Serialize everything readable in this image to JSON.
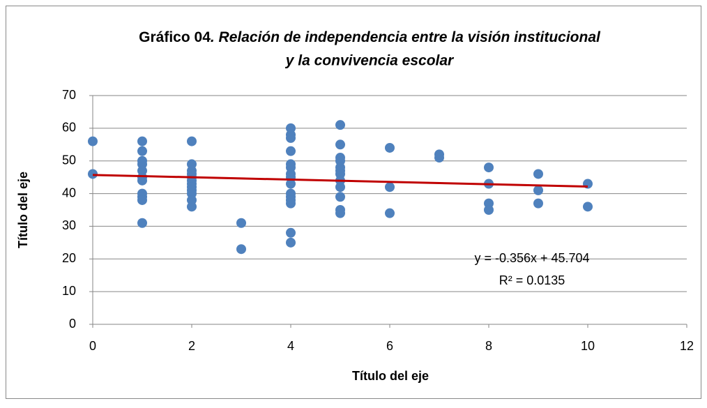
{
  "chart_data": {
    "type": "scatter",
    "title_parts": [
      "Gráfico 04",
      ". Relación de independencia entre la visión institucional",
      "y la convivencia escolar"
    ],
    "x_label": "Título del eje",
    "y_label": "Título del eje",
    "series": [
      {
        "color": "#4f81bd",
        "x": [
          0,
          0,
          1,
          1,
          1,
          1,
          1,
          1,
          1,
          1,
          1,
          1,
          1,
          2,
          2,
          2,
          2,
          2,
          2,
          2,
          2,
          2,
          2,
          2,
          2,
          3,
          3,
          4,
          4,
          4,
          4,
          4,
          4,
          4,
          4,
          4,
          4,
          4,
          4,
          4,
          4,
          4,
          5,
          5,
          5,
          5,
          5,
          5,
          5,
          5,
          5,
          5,
          5,
          5,
          6,
          6,
          6,
          7,
          7,
          8,
          8,
          8,
          8,
          9,
          9,
          9,
          10,
          10
        ],
        "values": [
          56,
          46,
          56,
          53,
          50,
          49,
          47,
          45,
          44,
          40,
          39,
          38,
          31,
          56,
          49,
          47,
          46,
          45,
          44,
          43,
          42,
          41,
          40,
          38,
          36,
          31,
          23,
          60,
          58,
          57,
          53,
          49,
          48,
          46,
          45,
          43,
          40,
          39,
          38,
          37,
          28,
          25,
          61,
          55,
          51,
          50,
          48,
          47,
          46,
          44,
          42,
          39,
          35,
          34,
          54,
          42,
          34,
          52,
          51,
          48,
          43,
          37,
          35,
          46,
          41,
          37,
          43,
          36
        ]
      }
    ],
    "trendline": {
      "slope": -0.356,
      "intercept": 45.704,
      "x_range": [
        0,
        10
      ],
      "color": "#c00000",
      "equation": "y = -0.356x + 45.704",
      "r_squared": 0.0135,
      "r_squared_label": "R² = 0.0135"
    },
    "xlim": [
      0,
      12
    ],
    "xticks": [
      0,
      2,
      4,
      6,
      8,
      10,
      12
    ],
    "ylim": [
      0,
      70
    ],
    "yticks": [
      0,
      10,
      20,
      30,
      40,
      50,
      60,
      70
    ],
    "grid": true
  }
}
